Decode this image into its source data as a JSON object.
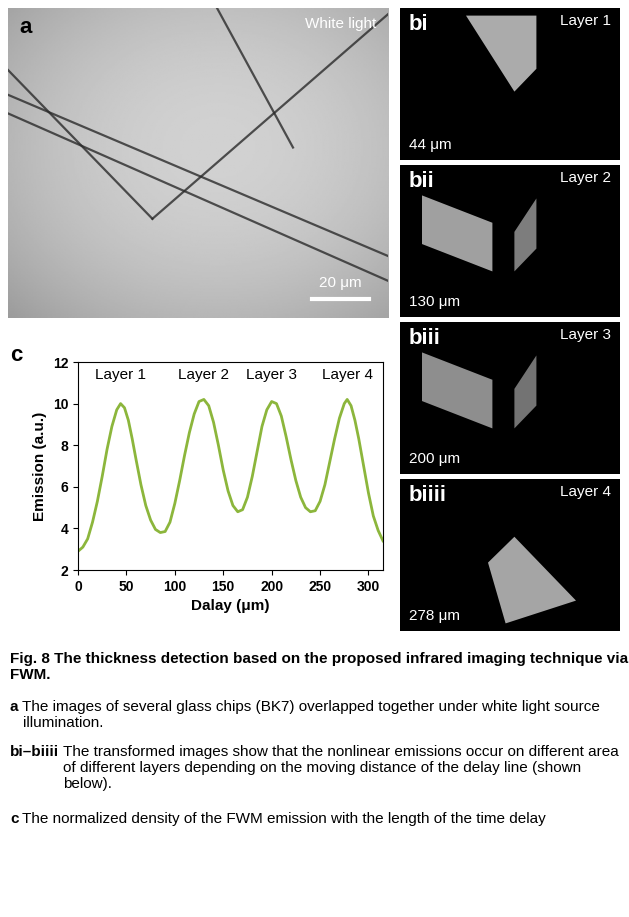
{
  "panels": {
    "a": {
      "panel_label": "a",
      "title": "White light",
      "scale_bar": "20 μm"
    },
    "b": [
      {
        "panel_label": "bi",
        "title": "Layer 1",
        "delay": "44 μm"
      },
      {
        "panel_label": "bii",
        "title": "Layer 2",
        "delay": "130 μm"
      },
      {
        "panel_label": "biii",
        "title": "Layer 3",
        "delay": "200 μm"
      },
      {
        "panel_label": "biiii",
        "title": "Layer 4",
        "delay": "278 μm"
      }
    ]
  },
  "chart_data": {
    "panel_label": "c",
    "type": "line",
    "x_label": "Dalay (μm)",
    "y_label": "Emission (a.u.)",
    "annotations": [
      "Layer 1",
      "Layer 2",
      "Layer 3",
      "Layer 4"
    ],
    "color": "#8cb63c",
    "x": [
      0,
      5,
      10,
      15,
      20,
      25,
      30,
      35,
      40,
      44,
      48,
      52,
      56,
      60,
      65,
      70,
      75,
      80,
      85,
      90,
      95,
      100,
      105,
      110,
      115,
      120,
      125,
      130,
      135,
      140,
      145,
      150,
      155,
      160,
      165,
      170,
      175,
      180,
      185,
      190,
      195,
      200,
      205,
      210,
      215,
      220,
      225,
      230,
      235,
      240,
      245,
      250,
      255,
      260,
      265,
      270,
      275,
      278,
      282,
      286,
      290,
      295,
      300,
      305,
      310,
      315
    ],
    "values": [
      2.9,
      3.1,
      3.5,
      4.3,
      5.3,
      6.5,
      7.8,
      8.9,
      9.7,
      10.0,
      9.8,
      9.2,
      8.3,
      7.3,
      6.1,
      5.1,
      4.4,
      3.95,
      3.8,
      3.85,
      4.3,
      5.2,
      6.3,
      7.5,
      8.6,
      9.5,
      10.1,
      10.2,
      9.9,
      9.1,
      8.0,
      6.8,
      5.8,
      5.1,
      4.8,
      4.9,
      5.5,
      6.5,
      7.7,
      8.9,
      9.7,
      10.1,
      10.0,
      9.4,
      8.4,
      7.3,
      6.3,
      5.5,
      5.0,
      4.8,
      4.85,
      5.3,
      6.1,
      7.2,
      8.3,
      9.3,
      10.0,
      10.2,
      9.9,
      9.2,
      8.3,
      7.0,
      5.7,
      4.6,
      3.9,
      3.4
    ],
    "xlim": [
      0,
      315
    ],
    "ylim": [
      2,
      12
    ],
    "xticks": [
      0,
      50,
      100,
      150,
      200,
      250,
      300
    ],
    "yticks": [
      2,
      4,
      6,
      8,
      10,
      12
    ]
  },
  "caption": {
    "title": "Fig. 8 The thickness detection based on the proposed infrared imaging technique via FWM.",
    "parts": [
      {
        "label": "a",
        "text": "The images of several glass chips (BK7) overlapped together under white light source illumination."
      },
      {
        "label": "bi–biiii",
        "text": "The transformed images show that the nonlinear emissions occur on different area of different layers depending on the moving distance of the delay line (shown below)."
      },
      {
        "label": "c",
        "text": "The normalized density of the FWM emission with the length of the time delay"
      }
    ]
  }
}
